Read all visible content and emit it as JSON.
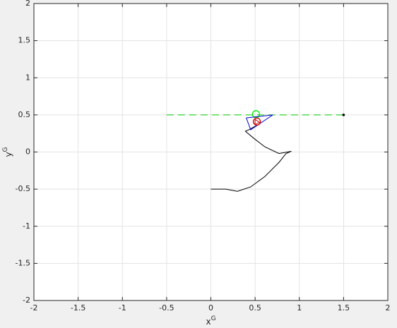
{
  "chart_data": {
    "type": "line",
    "xlabel": {
      "text": "x",
      "superscript": "G"
    },
    "ylabel": {
      "text": "y",
      "superscript": "G"
    },
    "xlim": [
      -2,
      2
    ],
    "ylim": [
      -2,
      2
    ],
    "xticks": [
      -2,
      -1.5,
      -1,
      -0.5,
      0,
      0.5,
      1,
      1.5,
      2
    ],
    "yticks": [
      -2,
      -1.5,
      -1,
      -0.5,
      0,
      0.5,
      1,
      1.5,
      2
    ],
    "grid": true,
    "series": [
      {
        "color": "#000000",
        "linestyle": "-",
        "x": [
          0,
          0.17,
          0.3,
          0.45,
          0.61,
          0.77,
          0.85,
          0.91,
          0.77,
          0.61,
          0.49,
          0.39,
          0.43,
          0.49,
          0.55
        ],
        "values": [
          -0.5,
          -0.5,
          -0.53,
          -0.47,
          -0.33,
          -0.14,
          -0.02,
          0.01,
          -0.02,
          0.07,
          0.18,
          0.28,
          0.3,
          0.34,
          0.375
        ]
      },
      {
        "color": "#00cc00",
        "linestyle": "--",
        "x": [
          -0.5,
          1.5
        ],
        "values": [
          0.5,
          0.5
        ]
      },
      {
        "color": "#000000",
        "marker": "dot",
        "x": [
          1.5
        ],
        "values": [
          0.5
        ]
      },
      {
        "color": "#00ee00",
        "marker": "o",
        "x": [
          0.51
        ],
        "values": [
          0.51
        ]
      },
      {
        "color": "#0000cc",
        "linestyle": "-",
        "x": [
          0.4,
          0.7,
          0.45,
          0.4
        ],
        "values": [
          0.46,
          0.5,
          0.3,
          0.46
        ]
      },
      {
        "color": "#cc0000",
        "linestyle": "-",
        "x": [
          0.5,
          0.55,
          0.5,
          0.5
        ],
        "values": [
          0.44,
          0.4,
          0.37,
          0.44
        ]
      },
      {
        "color": "#cc0000",
        "marker": "o",
        "x": [
          0.52
        ],
        "values": [
          0.41
        ]
      }
    ]
  }
}
